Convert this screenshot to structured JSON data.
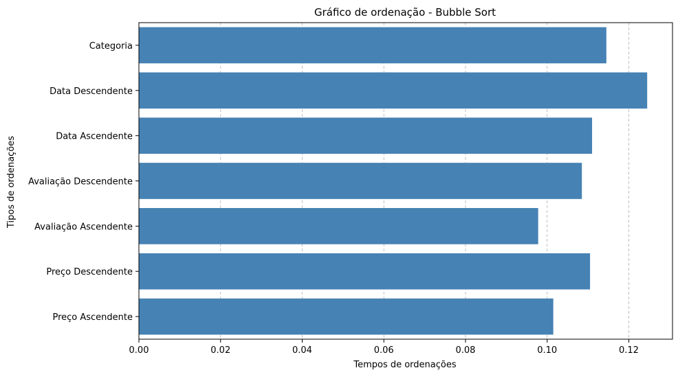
{
  "chart_data": {
    "type": "bar",
    "orientation": "horizontal",
    "title": "Gráfico de ordenação - Bubble Sort",
    "xlabel": "Tempos de ordenações",
    "ylabel": "Tipos de ordenações",
    "categories": [
      "Categoria",
      "Data Descendente",
      "Data Ascendente",
      "Avaliação Descendente",
      "Avaliação Ascendente",
      "Preço Descendente",
      "Preço Ascendente"
    ],
    "values": [
      0.1145,
      0.1245,
      0.111,
      0.1085,
      0.0978,
      0.1105,
      0.1015
    ],
    "xlim": [
      0,
      0.1307
    ],
    "xticks": [
      0,
      0.02,
      0.04,
      0.06,
      0.08,
      0.1,
      0.12
    ],
    "xtick_labels": [
      "0.00",
      "0.02",
      "0.04",
      "0.06",
      "0.08",
      "0.10",
      "0.12"
    ],
    "grid": "x-axis dashed",
    "legend": "none",
    "colors": {
      "bar": "#4682b4",
      "grid": "#b0b0b0",
      "axis": "#000000"
    }
  }
}
